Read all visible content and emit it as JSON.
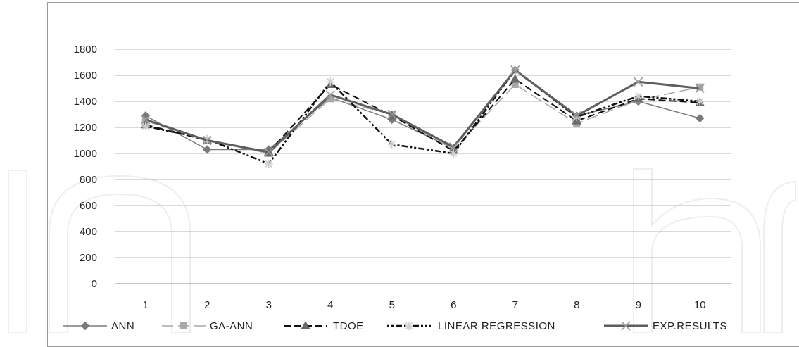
{
  "chart_data": {
    "type": "line",
    "title": "",
    "xlabel": "",
    "ylabel": "",
    "categories": [
      "1",
      "2",
      "3",
      "4",
      "5",
      "6",
      "7",
      "8",
      "9",
      "10"
    ],
    "ylim": [
      0,
      1800
    ],
    "yticks": [
      0,
      200,
      400,
      600,
      800,
      1000,
      1200,
      1400,
      1600,
      1800
    ],
    "grid": "horizontal",
    "legend_position": "bottom",
    "series": [
      {
        "name": "ANN",
        "color": "#7a7a7a",
        "dash": "solid",
        "marker": "diamond",
        "width": 1.5,
        "values": [
          1290,
          1030,
          1030,
          1430,
          1260,
          1040,
          1640,
          1290,
          1400,
          1270
        ]
      },
      {
        "name": "GA-ANN",
        "color": "#a8a8a8",
        "dash": "long-dash",
        "marker": "square",
        "width": 1.5,
        "values": [
          1250,
          1100,
          1000,
          1420,
          1300,
          1030,
          1530,
          1230,
          1410,
          1510
        ]
      },
      {
        "name": "TDOE",
        "color": "#111111",
        "dash": "dash",
        "marker": "triangle",
        "width": 2,
        "values": [
          1220,
          1100,
          1010,
          1530,
          1290,
          1020,
          1570,
          1250,
          1420,
          1390
        ]
      },
      {
        "name": "LINEAR REGRESSION",
        "color": "#111111",
        "dash": "dash-dot",
        "marker": "star",
        "width": 2.5,
        "values": [
          1210,
          1110,
          920,
          1550,
          1070,
          1000,
          1640,
          1280,
          1440,
          1400
        ]
      },
      {
        "name": "EXP.RESULTS",
        "color": "#5e5e5e",
        "dash": "solid",
        "marker": "x",
        "width": 3,
        "values": [
          1260,
          1100,
          1010,
          1450,
          1300,
          1050,
          1640,
          1290,
          1550,
          1500
        ]
      }
    ]
  }
}
